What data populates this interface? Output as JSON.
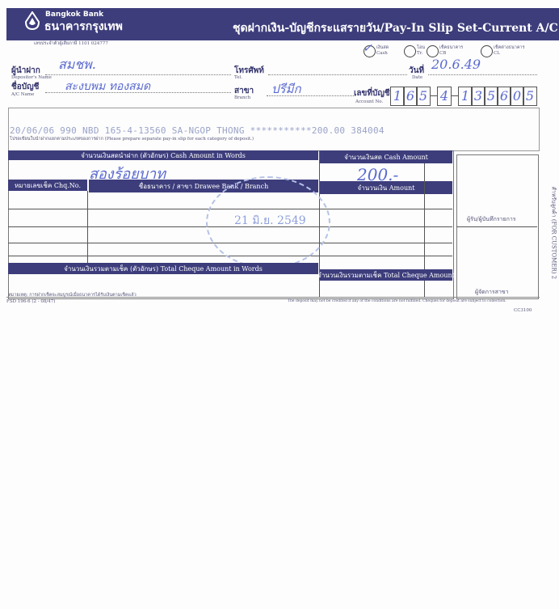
{
  "header": {
    "bank_name_en": "Bangkok Bank",
    "bank_name_th": "ธนาคารกรุงเทพ",
    "title": "ชุดฝากเงิน-บัญชีกระแสรายวัน/Pay-In Slip Set-Current A/C",
    "tax_id": "เลขประจำตัวผู้เสียภาษี 1101 024777"
  },
  "deposit_types": [
    {
      "th": "เงินสด",
      "en": "Cash",
      "selected": true
    },
    {
      "th": "โอน",
      "en": "Tr.",
      "selected": false
    },
    {
      "th": "เช็คธนาคาร",
      "en": "CB",
      "selected": false
    },
    {
      "th": "เช็คต่างธนาคาร",
      "en": "CL",
      "selected": false
    }
  ],
  "fields": {
    "depositor_label_th": "ผู้นำฝาก",
    "depositor_label_en": "Depositor's Name",
    "depositor_value": "สมชพ.",
    "tel_label_th": "โทรศัพท์",
    "tel_label_en": "Tel.",
    "date_label_th": "วันที่",
    "date_label_en": "Date",
    "date_value": "20.6.49",
    "acname_label_th": "ชื่อบัญชี",
    "acname_label_en": "A/C Name",
    "acname_value": "สะงบพม ทองสมด",
    "branch_label_th": "สาขา",
    "branch_label_en": "Branch",
    "branch_value": "ปรีมีก",
    "account_label_th": "เลขที่บัญชี",
    "account_label_en": "Account No.",
    "account_digits": [
      "1",
      "6",
      "5",
      "4",
      "1",
      "3",
      "5",
      "6",
      "0",
      "5"
    ]
  },
  "validation_line": "20/06/06 990 NBD 165-4-13560 SA-NGOP THONG ***********200.00 384004",
  "instruction": "โปรดเขียนใบนำฝากแยกตามประเภทของการฝาก (Please prepare separate pay-in slip for each category of deposit.)",
  "table": {
    "cash_words_header": "จำนวนเงินสดนำฝาก (ตัวอักษร) Cash Amount in Words",
    "cash_words_value": "สองร้อยบาท",
    "cash_amount_header": "จำนวนเงินสด Cash Amount",
    "cash_amount_value": "200.-",
    "chq_no_header": "หมายเลขเช็ค Chq.No.",
    "drawee_header": "ชื่อธนาคาร / สาขา Drawee Bank / Branch",
    "amount_header": "จำนวนเงิน Amount",
    "total_words_header": "จำนวนเงินรวมตามเช็ค (ตัวอักษร) Total Cheque Amount in Words",
    "total_amount_header": "จำนวนเงินรวมตามเช็ค Total Cheque Amount",
    "stamp_date": "21 มิ.ย. 2549"
  },
  "side": {
    "receiver": "ผู้รับ/ผู้บันทึกรายการ",
    "authorizer": "ผู้จัดการสาขา",
    "vertical": "สำหรับลูกค้า (FOR CUSTOMER) 2"
  },
  "footer": {
    "note_th": "หมายเหตุ: การฝากเช็คจะสมบูรณ์เมื่อธนาคารได้รับเงินตามเช็คแล้ว",
    "form_no": "FSD 196-6 (2 - 08/47)",
    "note_en": "The deposit may not be credited if any of the conditions are not fulfilled. Cheques for deposit are subject to collection.",
    "code": "CC3100"
  }
}
